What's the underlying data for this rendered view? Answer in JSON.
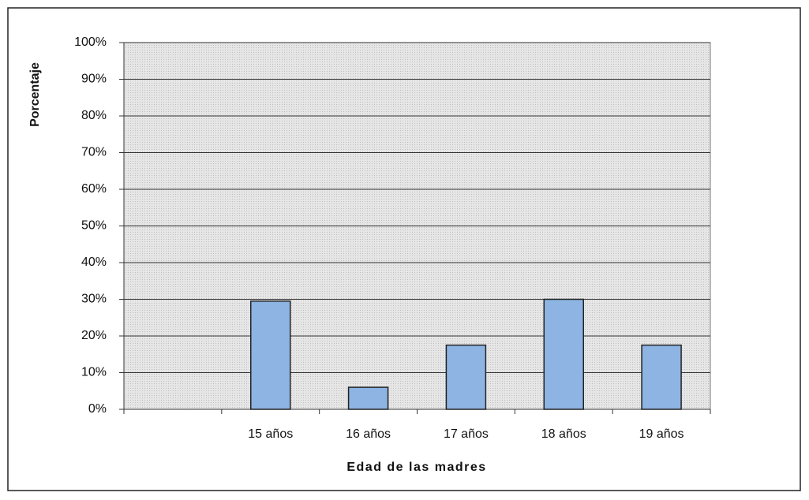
{
  "chart_data": {
    "type": "bar",
    "y_axis_label": "Porcentaje",
    "x_axis_label": "Edad de las madres",
    "categories": [
      null,
      "15 años",
      "16 años",
      "17 años",
      "18 años",
      "19 años"
    ],
    "values": [
      null,
      29.5,
      6,
      17.5,
      30,
      17.5
    ],
    "color": "#8db4e2",
    "ylim": [
      0,
      100
    ],
    "yticks": [
      {
        "value": 0,
        "label": "0%"
      },
      {
        "value": 10,
        "label": "10%"
      },
      {
        "value": 20,
        "label": "20%"
      },
      {
        "value": 30,
        "label": "30%"
      },
      {
        "value": 40,
        "label": "40%"
      },
      {
        "value": 50,
        "label": "50%"
      },
      {
        "value": 60,
        "label": "60%"
      },
      {
        "value": 70,
        "label": "70%"
      },
      {
        "value": 80,
        "label": "80%"
      },
      {
        "value": 90,
        "label": "90%"
      },
      {
        "value": 100,
        "label": "100%"
      }
    ],
    "grid": true
  }
}
